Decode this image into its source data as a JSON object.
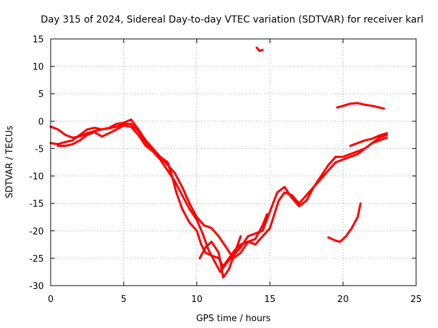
{
  "chart_data": {
    "type": "line",
    "title": "Day 315 of 2024, Sidereal Day-to-day VTEC variation (SDTVAR) for receiver karl",
    "xlabel": "GPS time / hours",
    "ylabel": "SDTVAR / TECUs",
    "xlim": [
      0,
      25
    ],
    "ylim": [
      -30,
      15
    ],
    "xticks": [
      0,
      5,
      10,
      15,
      20,
      25
    ],
    "yticks": [
      -30,
      -25,
      -20,
      -15,
      -10,
      -5,
      0,
      5,
      10,
      15
    ],
    "xtick_labels": [
      "0",
      "5",
      "10",
      "15",
      "20",
      "25"
    ],
    "ytick_labels": [
      "-30",
      "-25",
      "-20",
      "-15",
      "-10",
      "-5",
      "0",
      "5",
      "10",
      "15"
    ],
    "grid": true,
    "color": "#ff0000",
    "series": [
      {
        "name": "trace-a",
        "points": [
          [
            0,
            -4
          ],
          [
            0.5,
            -4.2
          ],
          [
            1,
            -3.8
          ],
          [
            1.5,
            -3.5
          ],
          [
            2,
            -2.5
          ],
          [
            2.5,
            -1.5
          ],
          [
            3,
            -1.2
          ],
          [
            3.5,
            -1.5
          ],
          [
            4,
            -1.2
          ],
          [
            4.5,
            -0.5
          ],
          [
            5,
            -0.3
          ],
          [
            5.5,
            0.3
          ],
          [
            6,
            -1.5
          ],
          [
            6.5,
            -3.5
          ],
          [
            7,
            -5
          ],
          [
            7.5,
            -6.5
          ],
          [
            8,
            -7.5
          ],
          [
            8.3,
            -10
          ],
          [
            8.6,
            -13
          ],
          [
            9,
            -16
          ],
          [
            9.5,
            -18.5
          ],
          [
            10,
            -20
          ],
          [
            10.3,
            -22.5
          ],
          [
            10.6,
            -24
          ],
          [
            11,
            -24.5
          ],
          [
            11.5,
            -25
          ],
          [
            11.8,
            -26.5
          ],
          [
            12.2,
            -25
          ],
          [
            12.6,
            -23.5
          ],
          [
            13,
            -22.5
          ],
          [
            13.5,
            -22
          ],
          [
            14,
            -22.5
          ],
          [
            14.5,
            -21
          ],
          [
            15,
            -19.5
          ],
          [
            15.3,
            -17
          ],
          [
            15.6,
            -14.5
          ],
          [
            16,
            -13
          ],
          [
            16.5,
            -13.5
          ],
          [
            17,
            -15
          ],
          [
            17.5,
            -13.5
          ],
          [
            18,
            -12
          ],
          [
            18.5,
            -10.5
          ],
          [
            19,
            -9
          ],
          [
            19.5,
            -7.5
          ],
          [
            20,
            -7
          ],
          [
            20.5,
            -6.5
          ],
          [
            21,
            -6
          ],
          [
            21.5,
            -5
          ],
          [
            22,
            -4
          ],
          [
            22.5,
            -3.5
          ],
          [
            23,
            -3
          ]
        ]
      },
      {
        "name": "trace-b",
        "points": [
          [
            0,
            -1
          ],
          [
            0.5,
            -1.5
          ],
          [
            1,
            -2.5
          ],
          [
            1.5,
            -3
          ],
          [
            2,
            -2.8
          ],
          [
            2.5,
            -2.2
          ],
          [
            3,
            -1.8
          ],
          [
            3.5,
            -1.5
          ],
          [
            4,
            -1.3
          ],
          [
            4.5,
            -1
          ],
          [
            5,
            -0.5
          ],
          [
            5.5,
            -0.5
          ],
          [
            6,
            -1.8
          ],
          [
            6.5,
            -3.8
          ],
          [
            7,
            -5.5
          ],
          [
            7.5,
            -7
          ],
          [
            8,
            -9
          ],
          [
            8.5,
            -11
          ],
          [
            9,
            -13.5
          ],
          [
            9.5,
            -16
          ],
          [
            10,
            -18
          ],
          [
            10.4,
            -20.5
          ],
          [
            10.8,
            -23.5
          ],
          [
            11.2,
            -25.5
          ],
          [
            11.6,
            -27.5
          ],
          [
            12,
            -26
          ],
          [
            12.5,
            -24.5
          ],
          [
            13,
            -23
          ],
          [
            13.5,
            -21
          ],
          [
            14,
            -20.5
          ],
          [
            14.5,
            -20
          ],
          [
            15,
            -16.5
          ],
          [
            15.5,
            -13
          ],
          [
            16,
            -12
          ],
          [
            16.5,
            -14
          ],
          [
            17,
            -15.5
          ],
          [
            17.5,
            -14.5
          ],
          [
            18,
            -12
          ],
          [
            18.5,
            -10
          ],
          [
            19,
            -8
          ],
          [
            19.5,
            -6.5
          ],
          [
            20,
            -6.5
          ],
          [
            20.5,
            -6
          ],
          [
            21,
            -5.5
          ],
          [
            21.5,
            -5
          ],
          [
            22,
            -4
          ],
          [
            22.5,
            -3
          ],
          [
            23,
            -2.5
          ]
        ]
      },
      {
        "name": "trace-c",
        "points": [
          [
            0.5,
            -4.5
          ],
          [
            1,
            -4.5
          ],
          [
            1.5,
            -4.2
          ],
          [
            2,
            -3.5
          ],
          [
            2.5,
            -2.5
          ],
          [
            3,
            -2
          ],
          [
            3.5,
            -2.8
          ],
          [
            4,
            -2.2
          ],
          [
            4.5,
            -1.5
          ],
          [
            5,
            -0.8
          ],
          [
            5.5,
            -1
          ],
          [
            6,
            -2.5
          ],
          [
            6.5,
            -4.5
          ],
          [
            7,
            -5.5
          ],
          [
            7.5,
            -6.5
          ],
          [
            8,
            -8
          ],
          [
            8.5,
            -9.5
          ],
          [
            9,
            -12
          ],
          [
            9.5,
            -15
          ],
          [
            10,
            -17.5
          ],
          [
            10.5,
            -19
          ],
          [
            11,
            -19.5
          ],
          [
            11.5,
            -21
          ],
          [
            12,
            -23
          ],
          [
            12.5,
            -25
          ],
          [
            13,
            -24
          ],
          [
            13.5,
            -22
          ],
          [
            14,
            -21.5
          ],
          [
            14.5,
            -19
          ],
          [
            14.8,
            -17
          ]
        ]
      },
      {
        "name": "trace-d",
        "points": [
          [
            10.2,
            -25
          ],
          [
            10.6,
            -23
          ],
          [
            11,
            -22
          ],
          [
            11.5,
            -24
          ],
          [
            11.8,
            -28.5
          ],
          [
            12.2,
            -27
          ],
          [
            12.6,
            -24
          ],
          [
            13,
            -21
          ]
        ]
      },
      {
        "name": "trace-e",
        "points": [
          [
            14.1,
            13.4
          ],
          [
            14.3,
            12.8
          ],
          [
            14.5,
            13
          ]
        ]
      },
      {
        "name": "trace-f",
        "points": [
          [
            19.6,
            2.5
          ],
          [
            20,
            2.8
          ],
          [
            20.5,
            3.2
          ],
          [
            21,
            3.3
          ],
          [
            21.5,
            3
          ],
          [
            22,
            2.8
          ],
          [
            22.5,
            2.5
          ],
          [
            22.8,
            2.3
          ]
        ]
      },
      {
        "name": "trace-g",
        "points": [
          [
            19,
            -21.2
          ],
          [
            19.5,
            -21.8
          ],
          [
            19.8,
            -22
          ],
          [
            20.2,
            -21
          ],
          [
            20.6,
            -19.5
          ],
          [
            21,
            -17.5
          ],
          [
            21.2,
            -15
          ]
        ]
      },
      {
        "name": "trace-h",
        "points": [
          [
            20.5,
            -4.5
          ],
          [
            21,
            -4
          ],
          [
            21.5,
            -3.5
          ],
          [
            22,
            -3.2
          ],
          [
            22.5,
            -2.6
          ],
          [
            23,
            -2.2
          ]
        ]
      }
    ]
  }
}
